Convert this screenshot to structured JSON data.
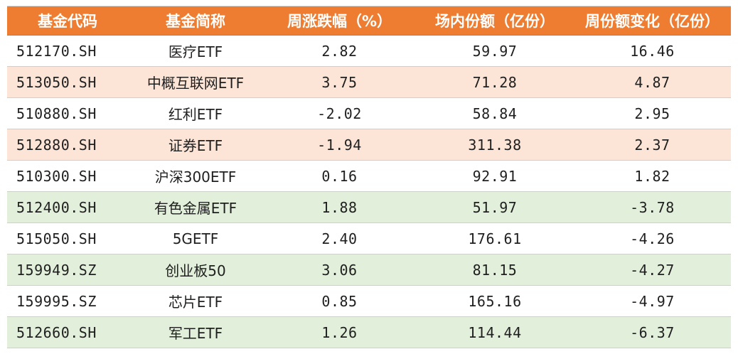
{
  "table": {
    "headers": [
      "基金代码",
      "基金简称",
      "周涨跌幅（%）",
      "场内份额（亿份）",
      "周份额变化（亿份）"
    ],
    "rows": [
      {
        "code": "512170.SH",
        "name": "医疗ETF",
        "weekly_change": "2.82",
        "shares": "59.97",
        "share_change": "16.46",
        "tone": "white"
      },
      {
        "code": "513050.SH",
        "name": "中概互联网ETF",
        "weekly_change": "3.75",
        "shares": "71.28",
        "share_change": "4.87",
        "tone": "pink"
      },
      {
        "code": "510880.SH",
        "name": "红利ETF",
        "weekly_change": "-2.02",
        "shares": "58.84",
        "share_change": "2.95",
        "tone": "white"
      },
      {
        "code": "512880.SH",
        "name": "证券ETF",
        "weekly_change": "-1.94",
        "shares": "311.38",
        "share_change": "2.37",
        "tone": "pink"
      },
      {
        "code": "510300.SH",
        "name": "沪深300ETF",
        "weekly_change": "0.16",
        "shares": "92.91",
        "share_change": "1.82",
        "tone": "white"
      },
      {
        "code": "512400.SH",
        "name": "有色金属ETF",
        "weekly_change": "1.88",
        "shares": "51.97",
        "share_change": "-3.78",
        "tone": "green"
      },
      {
        "code": "515050.SH",
        "name": "5GETF",
        "weekly_change": "2.40",
        "shares": "176.61",
        "share_change": "-4.26",
        "tone": "white"
      },
      {
        "code": "159949.SZ",
        "name": "创业板50",
        "weekly_change": "3.06",
        "shares": "81.15",
        "share_change": "-4.27",
        "tone": "green"
      },
      {
        "code": "159995.SZ",
        "name": "芯片ETF",
        "weekly_change": "0.85",
        "shares": "165.16",
        "share_change": "-4.97",
        "tone": "white"
      },
      {
        "code": "512660.SH",
        "name": "军工ETF",
        "weekly_change": "1.26",
        "shares": "114.44",
        "share_change": "-6.37",
        "tone": "green"
      }
    ]
  },
  "colors": {
    "header_bg": "#ee7d31",
    "inflow_row_bg": "#fce4d6",
    "outflow_row_bg": "#e2efda"
  }
}
